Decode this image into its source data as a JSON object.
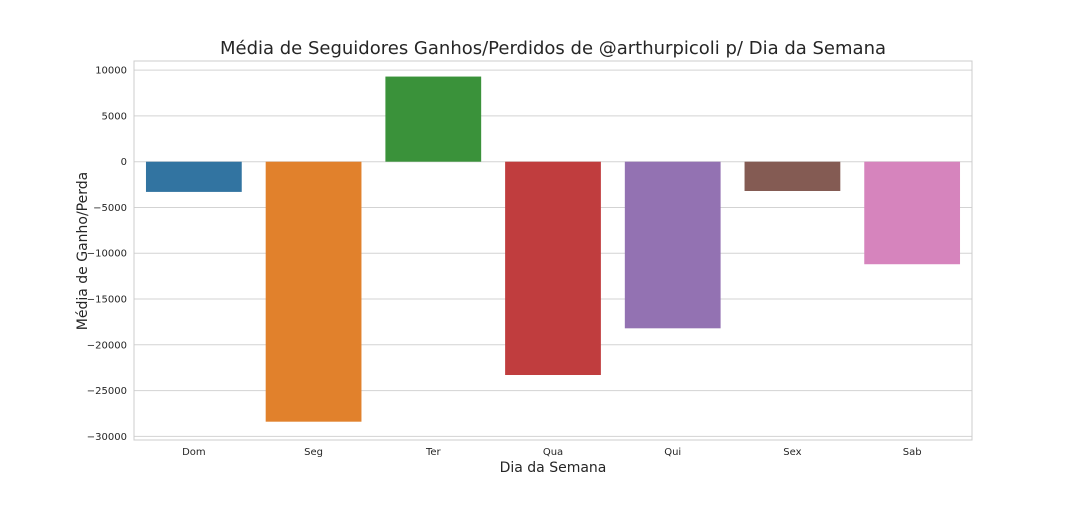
{
  "chart_data": {
    "type": "bar",
    "title": "Média de Seguidores Ganhos/Perdidos de @arthurpicoli p/ Dia da Semana",
    "xlabel": "Dia da Semana",
    "ylabel": "Média de Ganho/Perda",
    "categories": [
      "Dom",
      "Seg",
      "Ter",
      "Qua",
      "Qui",
      "Sex",
      "Sab"
    ],
    "values": [
      -3300,
      -28400,
      9300,
      -23300,
      -18200,
      -3200,
      -11200
    ],
    "colors": [
      "#3274a1",
      "#e1812c",
      "#3a923a",
      "#c03d3e",
      "#9372b2",
      "#845b53",
      "#d684bd"
    ],
    "yticks": [
      10000,
      5000,
      0,
      -5000,
      -10000,
      -15000,
      -20000,
      -25000,
      -30000
    ],
    "ytick_labels": [
      "10000",
      "5000",
      "0",
      "−5000",
      "−10000",
      "−15000",
      "−20000",
      "−25000",
      "−30000"
    ],
    "ylim": [
      -30400,
      11000
    ],
    "grid": true,
    "style": "seaborn-whitegrid"
  }
}
